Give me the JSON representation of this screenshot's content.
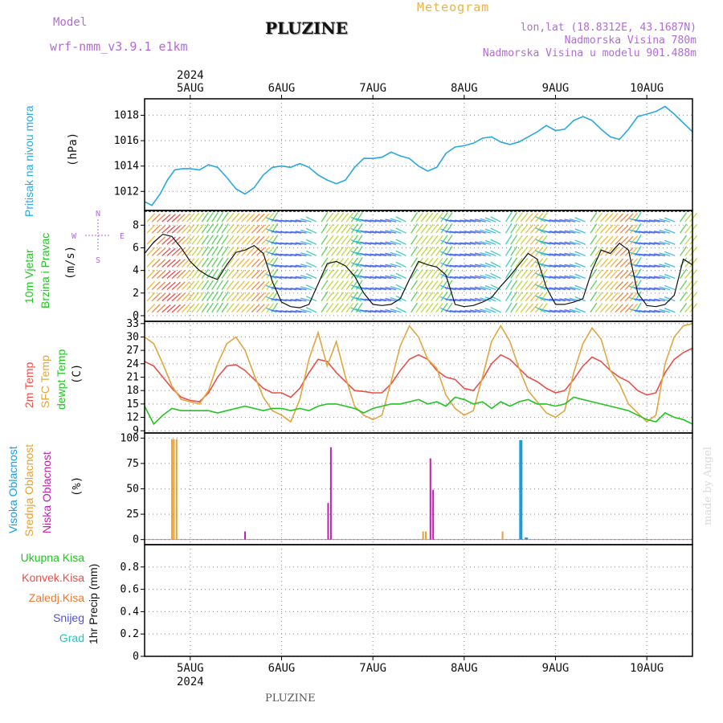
{
  "header": {
    "model_label": "Model",
    "model_name": "wrf-nmm_v3.9.1  e1km",
    "title": "PLUZINE",
    "meteogram_label": "Meteogram",
    "lonlat": "lon,lat (18.8312E, 43.1687N)",
    "elevation": "Nadmorska Visina 780m",
    "model_elevation": "Nadmorska Visina u modelu 901.488m",
    "footer_station": "PLUZINE",
    "credit": "made by Angel"
  },
  "colors": {
    "pressure": "#29a8e0",
    "temp2m": "#e8504a",
    "sfc_temp": "#e0a640",
    "dewpoint": "#22c422",
    "high_cloud": "#1e9be0",
    "mid_cloud": "#e6a035",
    "low_cloud": "#c020b0",
    "wind_speed": "#111111",
    "ukupna": "#22c422",
    "konvek": "#e8504a",
    "zaledj": "#f07830",
    "snijeg": "#5050e0",
    "grad": "#30c0b8"
  },
  "chart_data": {
    "type": "line",
    "x_axis": {
      "top_year": "2024",
      "bottom_year": "2024",
      "range_days": [
        4.5,
        10.5
      ],
      "date_labels": [
        "5AUG",
        "6AUG",
        "7AUG",
        "8AUG",
        "9AUG",
        "10AUG"
      ],
      "date_positions": [
        5,
        6,
        7,
        8,
        9,
        10
      ]
    },
    "panels": [
      {
        "name": "pressure",
        "ylabel": [
          "Pritisak na nivou mora",
          "(hPa)"
        ],
        "ylim": [
          1010.5,
          1019.3
        ],
        "yticks": [
          1012,
          1014,
          1016,
          1018
        ],
        "series": [
          {
            "x": [
              4.5,
              4.58,
              4.67,
              4.75,
              4.83,
              4.92,
              5.0,
              5.1,
              5.2,
              5.3,
              5.4,
              5.5,
              5.6,
              5.7,
              5.8,
              5.9,
              6.0,
              6.1,
              6.2,
              6.3,
              6.4,
              6.5,
              6.6,
              6.7,
              6.8,
              6.9,
              7.0,
              7.1,
              7.2,
              7.3,
              7.4,
              7.5,
              7.6,
              7.7,
              7.8,
              7.9,
              8.0,
              8.1,
              8.2,
              8.3,
              8.4,
              8.5,
              8.6,
              8.7,
              8.8,
              8.9,
              9.0,
              9.1,
              9.2,
              9.3,
              9.4,
              9.5,
              9.6,
              9.7,
              9.8,
              9.9,
              10.0,
              10.1,
              10.2,
              10.3,
              10.4,
              10.5
            ],
            "values": [
              1011.2,
              1010.9,
              1011.8,
              1012.9,
              1013.7,
              1013.8,
              1013.8,
              1013.7,
              1014.1,
              1013.9,
              1013.1,
              1012.2,
              1011.8,
              1012.3,
              1013.3,
              1013.9,
              1014.0,
              1013.9,
              1014.2,
              1013.9,
              1013.3,
              1012.9,
              1012.6,
              1012.9,
              1013.9,
              1014.6,
              1014.6,
              1014.7,
              1015.1,
              1014.8,
              1014.6,
              1014.0,
              1013.6,
              1013.9,
              1015.0,
              1015.5,
              1015.6,
              1015.8,
              1016.2,
              1016.3,
              1015.9,
              1015.7,
              1015.9,
              1016.3,
              1016.7,
              1017.2,
              1016.8,
              1016.9,
              1017.6,
              1017.9,
              1017.6,
              1016.9,
              1016.3,
              1016.1,
              1016.9,
              1017.9,
              1018.1,
              1018.3,
              1018.7,
              1018.1,
              1017.4,
              1016.7
            ]
          }
        ]
      },
      {
        "name": "wind",
        "ylabel": [
          "10m Vjetar",
          "Brzina i Pravac",
          "(m/s)"
        ],
        "compass": [
          "N",
          "E",
          "S",
          "W"
        ],
        "ylim": [
          -0.5,
          9.3
        ],
        "yticks": [
          0,
          2,
          4,
          6,
          8
        ],
        "series": [
          {
            "name": "speed",
            "x": [
              4.5,
              4.6,
              4.7,
              4.8,
              4.9,
              5.0,
              5.1,
              5.2,
              5.3,
              5.4,
              5.5,
              5.6,
              5.7,
              5.8,
              5.9,
              6.0,
              6.1,
              6.2,
              6.3,
              6.4,
              6.5,
              6.6,
              6.7,
              6.8,
              6.9,
              7.0,
              7.1,
              7.2,
              7.3,
              7.4,
              7.5,
              7.6,
              7.7,
              7.8,
              7.9,
              8.0,
              8.1,
              8.2,
              8.3,
              8.4,
              8.5,
              8.6,
              8.7,
              8.8,
              8.9,
              9.0,
              9.1,
              9.2,
              9.3,
              9.4,
              9.5,
              9.6,
              9.7,
              9.8,
              9.9,
              10.0,
              10.1,
              10.2,
              10.3,
              10.4,
              10.5
            ],
            "values": [
              5.5,
              6.5,
              7.2,
              7.0,
              6.0,
              4.8,
              4.0,
              3.5,
              3.2,
              4.5,
              5.6,
              5.8,
              6.2,
              5.5,
              3.0,
              1.2,
              0.8,
              0.7,
              1.0,
              2.8,
              4.6,
              4.8,
              4.4,
              3.5,
              2.0,
              1.0,
              0.9,
              1.0,
              1.5,
              3.2,
              4.8,
              4.5,
              4.3,
              3.6,
              1.0,
              0.8,
              0.9,
              1.2,
              1.6,
              2.6,
              3.5,
              4.5,
              5.5,
              5.0,
              2.5,
              1.0,
              1.0,
              1.2,
              1.5,
              4.0,
              5.8,
              5.5,
              6.4,
              5.8,
              2.0,
              0.9,
              0.8,
              1.0,
              1.8,
              5.0,
              4.5
            ]
          }
        ]
      },
      {
        "name": "temperature",
        "ylabel": [
          "2m Temp",
          "SFC Temp",
          "dewpt Temp",
          "(C)"
        ],
        "ylim": [
          8.5,
          33.5
        ],
        "yticks": [
          9,
          12,
          15,
          18,
          21,
          24,
          27,
          30,
          33
        ],
        "series": [
          {
            "name": "2m Temp",
            "x": [
              4.5,
              4.6,
              4.7,
              4.8,
              4.9,
              5.0,
              5.1,
              5.2,
              5.3,
              5.4,
              5.5,
              5.6,
              5.7,
              5.8,
              5.9,
              6.0,
              6.1,
              6.2,
              6.3,
              6.4,
              6.5,
              6.6,
              6.7,
              6.8,
              6.9,
              7.0,
              7.1,
              7.2,
              7.3,
              7.4,
              7.5,
              7.6,
              7.7,
              7.8,
              7.9,
              8.0,
              8.1,
              8.2,
              8.3,
              8.4,
              8.5,
              8.6,
              8.7,
              8.8,
              8.9,
              9.0,
              9.1,
              9.2,
              9.3,
              9.4,
              9.5,
              9.6,
              9.7,
              9.8,
              9.9,
              10.0,
              10.1,
              10.2,
              10.3,
              10.4,
              10.5
            ],
            "values": [
              24.5,
              23.5,
              21.0,
              18.5,
              16.5,
              15.8,
              15.5,
              17.5,
              21.0,
              23.5,
              23.8,
              22.5,
              20.5,
              18.5,
              17.5,
              17.5,
              16.5,
              18.5,
              22.0,
              25.0,
              24.5,
              22.0,
              20.0,
              18.0,
              17.8,
              17.5,
              17.5,
              19.5,
              22.5,
              25.0,
              26.0,
              25.0,
              22.5,
              21.0,
              20.5,
              18.5,
              18.0,
              20.5,
              24.0,
              26.0,
              25.0,
              23.0,
              21.0,
              20.0,
              18.5,
              17.5,
              18.0,
              20.5,
              23.5,
              25.5,
              24.5,
              22.5,
              21.0,
              20.0,
              18.0,
              17.0,
              17.5,
              22.0,
              25.0,
              26.5,
              27.5
            ]
          },
          {
            "name": "SFC Temp",
            "x": [
              4.5,
              4.6,
              4.7,
              4.8,
              4.9,
              5.0,
              5.1,
              5.2,
              5.3,
              5.4,
              5.5,
              5.6,
              5.7,
              5.8,
              5.9,
              6.0,
              6.1,
              6.2,
              6.3,
              6.4,
              6.5,
              6.6,
              6.7,
              6.8,
              6.9,
              7.0,
              7.1,
              7.2,
              7.3,
              7.4,
              7.5,
              7.6,
              7.7,
              7.8,
              7.9,
              8.0,
              8.1,
              8.2,
              8.3,
              8.4,
              8.5,
              8.6,
              8.7,
              8.8,
              8.9,
              9.0,
              9.1,
              9.2,
              9.3,
              9.4,
              9.5,
              9.6,
              9.7,
              9.8,
              9.9,
              10.0,
              10.1,
              10.2,
              10.3,
              10.4,
              10.5
            ],
            "values": [
              30.0,
              28.5,
              24.0,
              19.0,
              16.0,
              15.5,
              15.0,
              18.0,
              24.0,
              28.5,
              30.0,
              27.0,
              21.5,
              16.5,
              13.5,
              12.5,
              11.0,
              16.0,
              25.0,
              31.0,
              23.5,
              29.0,
              21.0,
              14.5,
              12.5,
              11.5,
              12.5,
              20.0,
              28.0,
              32.5,
              30.0,
              25.0,
              23.0,
              17.0,
              14.0,
              12.5,
              13.5,
              21.0,
              29.0,
              32.5,
              29.0,
              23.0,
              18.0,
              15.5,
              13.0,
              12.0,
              13.5,
              22.0,
              28.5,
              32.0,
              29.5,
              22.5,
              19.5,
              15.0,
              13.0,
              11.0,
              12.5,
              24.0,
              30.0,
              32.5,
              33.0
            ]
          },
          {
            "name": "dewpt Temp",
            "x": [
              4.5,
              4.6,
              4.7,
              4.8,
              4.9,
              5.0,
              5.1,
              5.2,
              5.3,
              5.4,
              5.5,
              5.6,
              5.7,
              5.8,
              5.9,
              6.0,
              6.1,
              6.2,
              6.3,
              6.4,
              6.5,
              6.6,
              6.7,
              6.8,
              6.9,
              7.0,
              7.1,
              7.2,
              7.3,
              7.4,
              7.5,
              7.6,
              7.7,
              7.8,
              7.9,
              8.0,
              8.1,
              8.2,
              8.3,
              8.4,
              8.5,
              8.6,
              8.7,
              8.8,
              8.9,
              9.0,
              9.1,
              9.2,
              9.3,
              9.4,
              9.5,
              9.6,
              9.7,
              9.8,
              9.9,
              10.0,
              10.1,
              10.2,
              10.3,
              10.4,
              10.5
            ],
            "values": [
              14.5,
              10.5,
              12.5,
              14.0,
              13.5,
              13.5,
              13.5,
              13.5,
              13.0,
              13.5,
              14.0,
              14.5,
              14.0,
              13.5,
              14.0,
              14.0,
              13.5,
              14.0,
              13.5,
              14.5,
              15.0,
              15.0,
              14.5,
              14.0,
              13.0,
              14.0,
              14.5,
              15.0,
              15.0,
              15.5,
              16.0,
              15.0,
              15.5,
              14.5,
              16.5,
              16.0,
              15.0,
              15.5,
              14.0,
              15.5,
              14.5,
              15.5,
              16.0,
              15.0,
              15.0,
              14.5,
              15.0,
              16.5,
              16.0,
              15.5,
              15.0,
              14.5,
              14.0,
              13.5,
              12.5,
              11.5,
              11.0,
              13.0,
              12.0,
              11.5,
              10.5
            ]
          }
        ]
      },
      {
        "name": "cloud",
        "ylabel": [
          "Visoka Oblacnost",
          "Srednja Oblacnost",
          "Niska Oblacnost",
          "(%)"
        ],
        "ylim": [
          -5,
          105
        ],
        "yticks": [
          0,
          25,
          50,
          75,
          100
        ],
        "bars": [
          {
            "name": "Srednja Oblacnost",
            "x": [
              4.8,
              4.82,
              4.85,
              7.55,
              7.58,
              8.42
            ],
            "values": [
              99,
              99,
              99,
              8,
              8,
              8
            ]
          },
          {
            "name": "Niska Oblacnost",
            "x": [
              5.6,
              6.51,
              6.54,
              7.63,
              7.66
            ],
            "values": [
              8,
              36,
              91,
              80,
              49
            ]
          },
          {
            "name": "Visoka Oblacnost",
            "x": [
              8.62,
              8.68
            ],
            "values": [
              98,
              2
            ]
          }
        ]
      },
      {
        "name": "precip",
        "ylabel": [
          "1hr Precip (mm)"
        ],
        "legend": [
          "Ukupna  Kisa",
          "Konvek.Kisa",
          "Zaledj.Kisa",
          "Snijeg",
          "Grad"
        ],
        "ylim": [
          0,
          1.0
        ],
        "yticks": [
          0,
          0.2,
          0.4,
          0.6,
          0.8
        ],
        "ytick_labels": [
          "0",
          "0.2",
          "0.4",
          "0.6",
          "0.8"
        ],
        "series": []
      }
    ]
  }
}
